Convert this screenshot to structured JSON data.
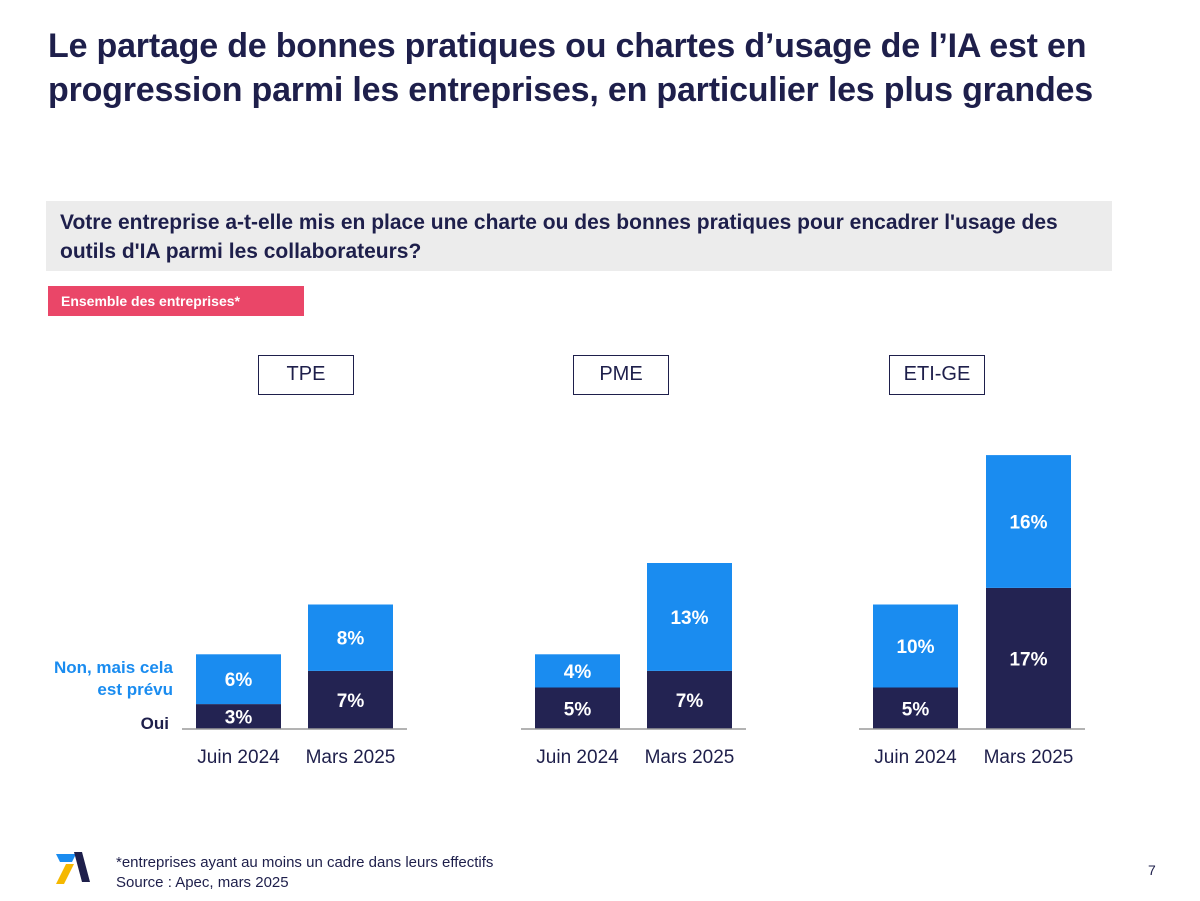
{
  "title": "Le partage de bonnes pratiques ou chartes d’usage de l’IA est en progression parmi les entreprises, en particulier les plus grandes",
  "question": "Votre entreprise a-t-elle mis en place une charte ou des bonnes pratiques pour encadrer l'usage des outils d'IA parmi les collaborateurs?",
  "scope_badge": "Ensemble des entreprises*",
  "legend": {
    "prevu": "Non, mais cela est prévu",
    "oui": "Oui"
  },
  "colors": {
    "oui": "#232352",
    "prevu": "#1a8cf0",
    "title": "#1e1f4b",
    "badge": "#ea4668",
    "logo_blue": "#1a8cf0",
    "logo_yellow": "#f5b800"
  },
  "footnote": {
    "note": "*entreprises ayant au moins un cadre dans leurs effectifs",
    "source": "Source : Apec, mars 2025"
  },
  "page_number": "7",
  "chart_data": {
    "type": "bar",
    "stacked": true,
    "unit": "%",
    "groups": [
      "TPE",
      "PME",
      "ETI-GE"
    ],
    "categories": [
      "Juin 2024",
      "Mars 2025"
    ],
    "series": [
      {
        "name": "Oui",
        "values": [
          [
            3,
            7
          ],
          [
            5,
            7
          ],
          [
            5,
            17
          ]
        ]
      },
      {
        "name": "Non, mais cela est prévu",
        "values": [
          [
            6,
            8
          ],
          [
            4,
            13
          ],
          [
            10,
            16
          ]
        ]
      }
    ],
    "labels": {
      "Oui": [
        [
          "3%",
          "7%"
        ],
        [
          "5%",
          "7%"
        ],
        [
          "5%",
          "17%"
        ]
      ],
      "Non, mais cela est prévu": [
        [
          "6%",
          "8%"
        ],
        [
          "4%",
          "13%"
        ],
        [
          "10%",
          "16%"
        ]
      ]
    },
    "grid": false,
    "legend_position": "left"
  }
}
